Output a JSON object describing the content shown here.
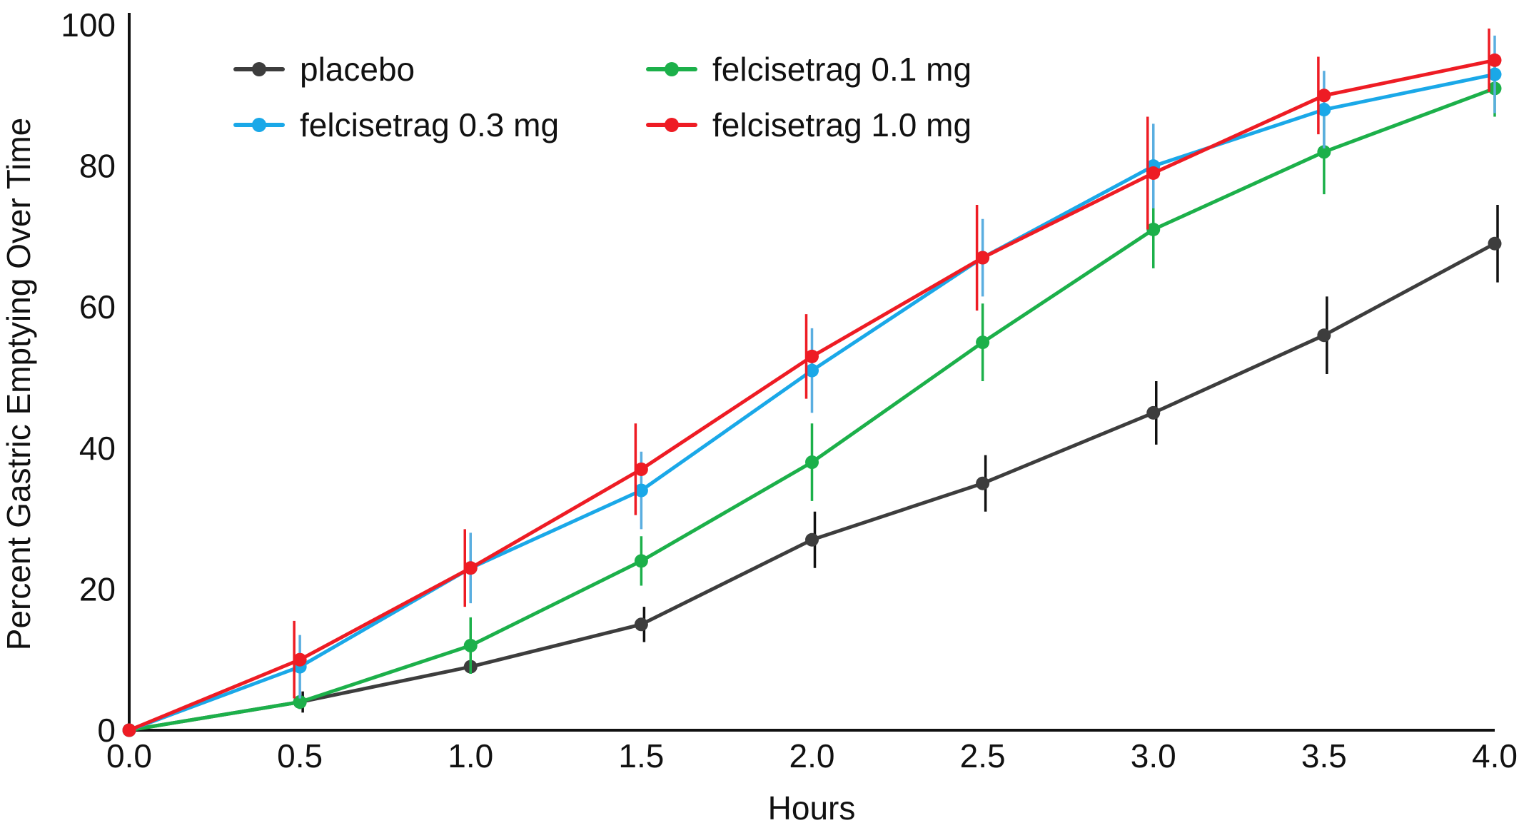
{
  "chart_data": {
    "type": "line",
    "title": "",
    "xlabel": "Hours",
    "ylabel": "Percent Gastric Emptying Over Time",
    "xlim": [
      0.0,
      4.0
    ],
    "ylim": [
      0,
      100
    ],
    "x_ticks": [
      "0.0",
      "0.5",
      "1.0",
      "1.5",
      "2.0",
      "2.5",
      "3.0",
      "3.5",
      "4.0"
    ],
    "y_ticks": [
      "0",
      "20",
      "40",
      "60",
      "80",
      "100"
    ],
    "grid": false,
    "legend_position": "top-left",
    "x": [
      0.0,
      0.5,
      1.0,
      1.5,
      2.0,
      2.5,
      3.0,
      3.5,
      4.0
    ],
    "series": [
      {
        "name": "placebo",
        "color": "#3d3d3d",
        "error_color": "#111111",
        "values": [
          0,
          4,
          9,
          15,
          27,
          35,
          45,
          56,
          69
        ],
        "errors": [
          0,
          1.5,
          0.5,
          2.5,
          4,
          4,
          4.5,
          5.5,
          5.5
        ]
      },
      {
        "name": "felcisetrag 0.1 mg",
        "color": "#1cb04a",
        "error_color": "#1cb04a",
        "values": [
          0,
          4,
          12,
          24,
          38,
          55,
          71,
          82,
          91
        ],
        "errors": [
          0,
          1,
          4,
          3.5,
          5.5,
          5.5,
          5.5,
          6,
          4
        ]
      },
      {
        "name": "felcisetrag 0.3 mg",
        "color": "#1aa8e8",
        "error_color": "#5aaee0",
        "values": [
          0,
          9,
          23,
          34,
          51,
          67,
          80,
          88,
          93
        ],
        "errors": [
          0,
          4.5,
          5,
          5.5,
          6,
          5.5,
          6,
          5.5,
          5.5
        ]
      },
      {
        "name": "felcisetrag 1.0 mg",
        "color": "#ee1c24",
        "error_color": "#ee1c24",
        "values": [
          0,
          10,
          23,
          37,
          53,
          67,
          79,
          90,
          95
        ],
        "errors": [
          0,
          5.5,
          5.5,
          6.5,
          6,
          7.5,
          8,
          5.5,
          4.5
        ]
      }
    ]
  }
}
